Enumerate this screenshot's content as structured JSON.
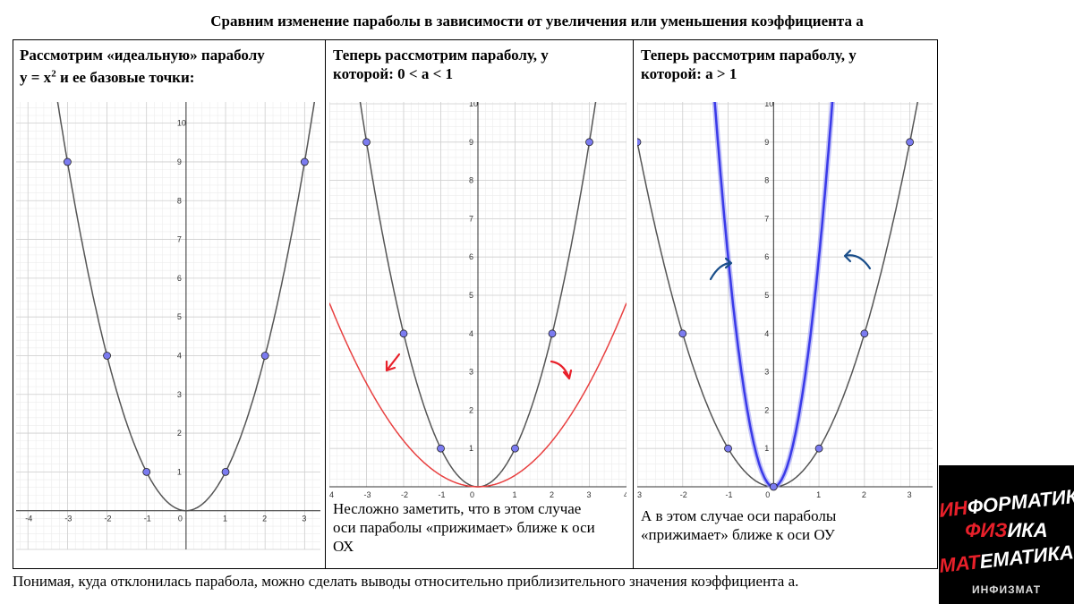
{
  "title": "Сравним изменение параболы в зависимости от увеличения или уменьшения коэффициента а",
  "panels": [
    {
      "heading_line1": "Рассмотрим «идеальную» параболу",
      "heading_line2_prefix": "у = х",
      "heading_line2_sup": "2",
      "heading_line2_suffix": " и ее базовые точки:",
      "caption": ""
    },
    {
      "heading_line1": "Теперь рассмотрим параболу, у",
      "heading_line2": "которой: 0 < а < 1",
      "caption_lines": [
        "Несложно заметить, что в этом случае",
        "оси параболы «прижимает» ближе к оси",
        "ОХ"
      ]
    },
    {
      "heading_line1": "Теперь рассмотрим параболу, у",
      "heading_line2": "которой: а > 1",
      "caption_lines": [
        "А в этом случае оси параболы",
        "«прижимает» ближе к оси ОУ"
      ]
    }
  ],
  "bottom_text": "Понимая, куда отклонилась парабола, можно сделать выводы относительно приблизительного значения коэффициента а.",
  "logo": {
    "line1_red": "ИН",
    "line1_white": "ФОРМАТИКА",
    "line2_red": "ФИЗ",
    "line2_white": "ИКА",
    "line3_red": "МАТ",
    "line3_white": "ЕМАТИКА",
    "line4": "ИНФИЗМАТ"
  },
  "chart_data": [
    {
      "type": "line",
      "x_ticks": [
        -4,
        -3,
        -2,
        -1,
        0,
        1,
        2,
        3
      ],
      "y_ticks": [
        1,
        2,
        3,
        4,
        5,
        6,
        7,
        8,
        9,
        10
      ],
      "series": [
        {
          "a": 1,
          "color": "#555555"
        }
      ],
      "points": [
        [
          -3,
          9
        ],
        [
          -2,
          4
        ],
        [
          -1,
          1
        ],
        [
          1,
          1
        ],
        [
          2,
          4
        ],
        [
          3,
          9
        ]
      ],
      "xlim": [
        -4.3,
        3.4
      ],
      "ylim": [
        -1.0,
        10.5
      ]
    },
    {
      "type": "line",
      "x_ticks": [
        -4,
        -3,
        -2,
        -1,
        0,
        1,
        2,
        3,
        4
      ],
      "y_ticks": [
        1,
        2,
        3,
        4,
        5,
        6,
        7,
        8,
        9,
        10
      ],
      "series": [
        {
          "a": 1,
          "color": "#555555"
        },
        {
          "a": 0.3,
          "color": "#e84040"
        }
      ],
      "points": [
        [
          -3,
          9
        ],
        [
          -2,
          4
        ],
        [
          -1,
          1
        ],
        [
          1,
          1
        ],
        [
          2,
          4
        ],
        [
          3,
          9
        ]
      ],
      "xlim": [
        -4.0,
        4.0
      ],
      "ylim": [
        0,
        10
      ]
    },
    {
      "type": "line",
      "x_ticks": [
        -3,
        -2,
        -1,
        0,
        1,
        2,
        3
      ],
      "y_ticks": [
        1,
        2,
        3,
        4,
        5,
        6,
        7,
        8,
        9,
        10
      ],
      "series": [
        {
          "a": 1,
          "color": "#555555"
        },
        {
          "a": 6,
          "color": "#3a3ae8"
        }
      ],
      "points": [
        [
          -3,
          9
        ],
        [
          -2,
          4
        ],
        [
          -1,
          1
        ],
        [
          1,
          1
        ],
        [
          2,
          4
        ],
        [
          3,
          9
        ]
      ],
      "xlim": [
        -3.0,
        3.5
      ],
      "ylim": [
        0,
        10
      ]
    }
  ]
}
